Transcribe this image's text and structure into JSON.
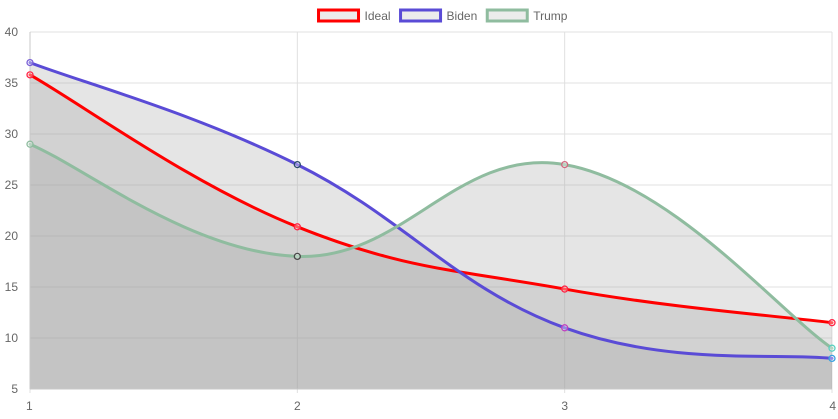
{
  "chart_data": {
    "type": "line",
    "x": [
      1,
      2,
      3,
      4
    ],
    "xlim": [
      1,
      4
    ],
    "ylim": [
      5,
      40
    ],
    "y_ticks": [
      5,
      10,
      15,
      20,
      25,
      30,
      35,
      40
    ],
    "x_ticks": [
      1,
      2,
      3,
      4
    ],
    "grid": true,
    "legend_position": "top",
    "series": [
      {
        "name": "Ideal",
        "values": [
          35.8,
          20.9,
          14.8,
          11.5
        ],
        "color": "#ff0000",
        "fill": "rgba(160,160,160,0.28)"
      },
      {
        "name": "Biden",
        "values": [
          37.0,
          27.0,
          11.0,
          8.0
        ],
        "color": "#5a4bd6",
        "fill": "rgba(160,160,160,0.28)"
      },
      {
        "name": "Trump",
        "values": [
          29.0,
          18.0,
          27.0,
          9.0
        ],
        "color": "#8fbc9f",
        "fill": "rgba(160,160,160,0.28)"
      }
    ],
    "point_colors": [
      [
        "#ff2244",
        "#ff2244",
        "#ff2244",
        "#ff2244"
      ],
      [
        "#7a5fd6",
        "#2a4a6a",
        "#c040c0",
        "#3aa0e0"
      ],
      [
        "#8fbc9f",
        "#4a4a4a",
        "#d06a80",
        "#5ad0c0"
      ]
    ]
  }
}
